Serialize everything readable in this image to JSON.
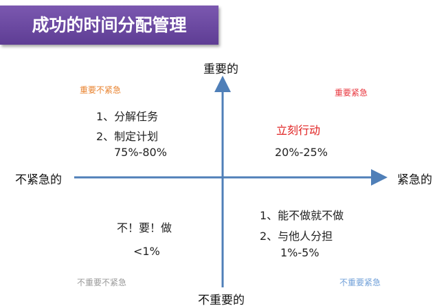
{
  "title": "成功的时间分配管理",
  "axes": {
    "top": "重要的",
    "bottom": "不重要的",
    "left": "不紧急的",
    "right": "紧急的"
  },
  "quadrants": {
    "top_left": {
      "label": "重要不紧急",
      "label_color": "#e8822e",
      "items": [
        "1、分解任务",
        "2、制定计划"
      ],
      "percent": "75%-80%"
    },
    "top_right": {
      "label": "重要紧急",
      "label_color": "#e8343c",
      "action": "立刻行动",
      "action_color": "#e02020",
      "percent": "20%-25%"
    },
    "bottom_left": {
      "label": "不重要不紧急",
      "label_color": "#999999",
      "action": "不！要！做",
      "percent": "<1%"
    },
    "bottom_right": {
      "label": "不重要紧急",
      "label_color": "#6f9fd8",
      "items": [
        "1、能不做就不做",
        "2、与他人分担"
      ],
      "percent": "1%-5%"
    }
  },
  "colors": {
    "axis": "#4f7fb8",
    "title_bg": "#6a4aa0"
  }
}
